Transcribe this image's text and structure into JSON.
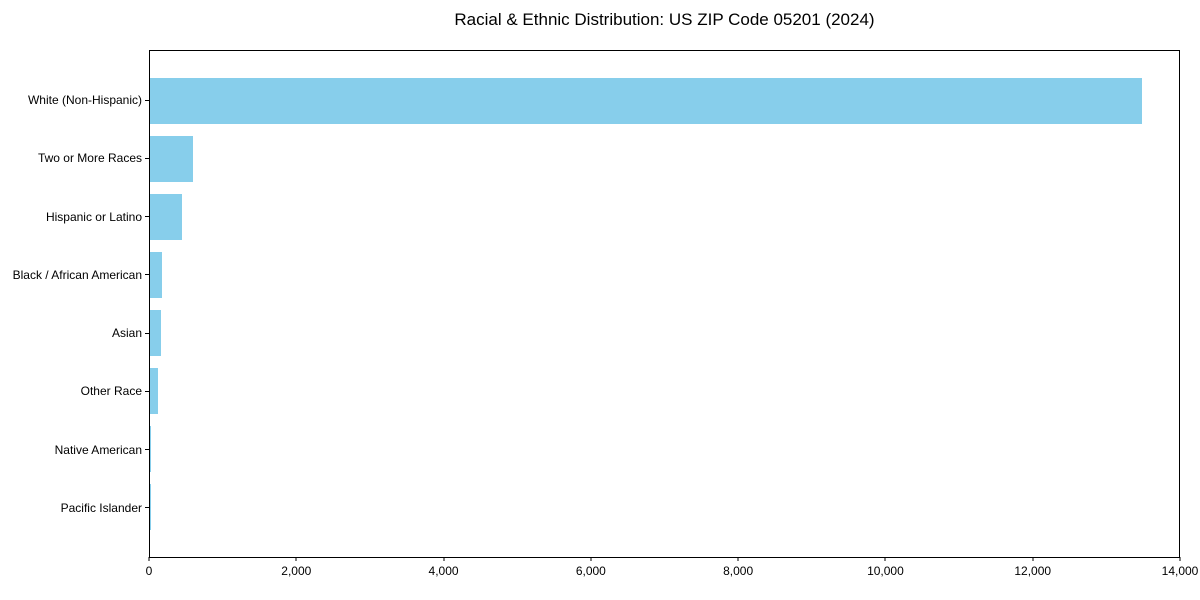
{
  "chart_data": {
    "type": "bar",
    "orientation": "horizontal",
    "title": "Racial & Ethnic Distribution: US ZIP Code 05201 (2024)",
    "categories": [
      "White (Non-Hispanic)",
      "Two or More Races",
      "Hispanic or Latino",
      "Black / African American",
      "Asian",
      "Other Race",
      "Native American",
      "Pacific Islander"
    ],
    "values": [
      13500,
      580,
      440,
      165,
      150,
      110,
      15,
      5
    ],
    "xlabel": "",
    "ylabel": "",
    "xlim": [
      0,
      14000
    ],
    "xticks": [
      0,
      2000,
      4000,
      6000,
      8000,
      10000,
      12000,
      14000
    ],
    "xtick_labels": [
      "0",
      "2,000",
      "4,000",
      "6,000",
      "8,000",
      "10,000",
      "12,000",
      "14,000"
    ],
    "bar_color": "#87CEEB",
    "grid": false,
    "legend": null
  }
}
